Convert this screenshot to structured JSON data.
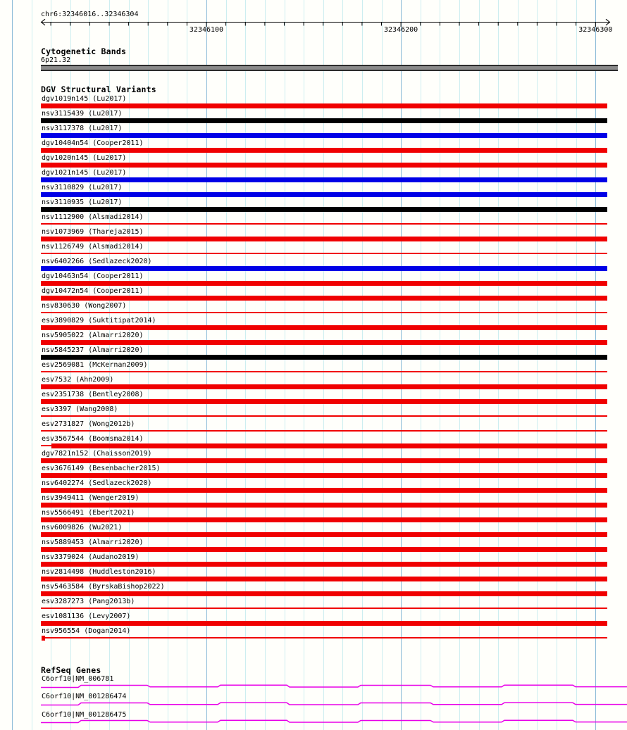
{
  "page": {
    "title": "chr6:32346016..32346304"
  },
  "ruler": {
    "start": 32346016,
    "end": 32346304,
    "tick_labels": [
      {
        "label": "32346100",
        "coord": 32346100
      },
      {
        "label": "32346200",
        "coord": 32346200
      },
      {
        "label": "32346300",
        "coord": 32346300
      }
    ]
  },
  "cytogenetic": {
    "title": "Cytogenetic Bands",
    "band_label": "6p21.32"
  },
  "dgv": {
    "title": "DGV Structural Variants",
    "variants": [
      {
        "label": "dgv1019n145 (Lu2017)",
        "color": "red",
        "style": "thick"
      },
      {
        "label": "nsv3115439 (Lu2017)",
        "color": "black",
        "style": "thick"
      },
      {
        "label": "nsv3117378 (Lu2017)",
        "color": "blue",
        "style": "thick"
      },
      {
        "label": "dgv10404n54 (Cooper2011)",
        "color": "red",
        "style": "thick"
      },
      {
        "label": "dgv1020n145 (Lu2017)",
        "color": "red",
        "style": "thick"
      },
      {
        "label": "dgv1021n145 (Lu2017)",
        "color": "blue",
        "style": "thick"
      },
      {
        "label": "nsv3110829 (Lu2017)",
        "color": "blue",
        "style": "thick"
      },
      {
        "label": "nsv3110935 (Lu2017)",
        "color": "black",
        "style": "thick"
      },
      {
        "label": "nsv1112900 (Alsmadi2014)",
        "color": "red",
        "style": "thin"
      },
      {
        "label": "nsv1073969 (Thareja2015)",
        "color": "red",
        "style": "thick"
      },
      {
        "label": "nsv1126749 (Alsmadi2014)",
        "color": "red",
        "style": "thin"
      },
      {
        "label": "nsv6402266 (Sedlazeck2020)",
        "color": "blue",
        "style": "thick"
      },
      {
        "label": "dgv10463n54 (Cooper2011)",
        "color": "red",
        "style": "thick"
      },
      {
        "label": "dgv10472n54 (Cooper2011)",
        "color": "red",
        "style": "thick"
      },
      {
        "label": "nsv830630 (Wong2007)",
        "color": "red",
        "style": "thin"
      },
      {
        "label": "esv3890829 (Suktitipat2014)",
        "color": "red",
        "style": "thick"
      },
      {
        "label": "nsv5905022 (Almarri2020)",
        "color": "red",
        "style": "thick"
      },
      {
        "label": "nsv5845237 (Almarri2020)",
        "color": "black",
        "style": "thick"
      },
      {
        "label": "esv2569081 (McKernan2009)",
        "color": "red",
        "style": "thin"
      },
      {
        "label": "esv7532 (Ahn2009)",
        "color": "red",
        "style": "thick"
      },
      {
        "label": "esv2351738 (Bentley2008)",
        "color": "red",
        "style": "thick"
      },
      {
        "label": "esv3397 (Wang2008)",
        "color": "red",
        "style": "thin"
      },
      {
        "label": "esv2731827 (Wong2012b)",
        "color": "red",
        "style": "thin"
      },
      {
        "label": "esv3567544 (Boomsma2014)",
        "color": "red",
        "style": "thin-then-thick"
      },
      {
        "label": "dgv7821n152 (Chaisson2019)",
        "color": "red",
        "style": "thick"
      },
      {
        "label": "esv3676149 (Besenbacher2015)",
        "color": "red",
        "style": "thick"
      },
      {
        "label": "nsv6402274 (Sedlazeck2020)",
        "color": "red",
        "style": "thick"
      },
      {
        "label": "nsv3949411 (Wenger2019)",
        "color": "red",
        "style": "thick"
      },
      {
        "label": "nsv5566491 (Ebert2021)",
        "color": "red",
        "style": "thick"
      },
      {
        "label": "nsv6009826 (Wu2021)",
        "color": "red",
        "style": "thick"
      },
      {
        "label": "nsv5889453 (Almarri2020)",
        "color": "red",
        "style": "thick"
      },
      {
        "label": "nsv3379024 (Audano2019)",
        "color": "red",
        "style": "thick"
      },
      {
        "label": "nsv2814498 (Huddleston2016)",
        "color": "red",
        "style": "thick"
      },
      {
        "label": "nsv5463584 (ByrskaBishop2022)",
        "color": "red",
        "style": "thick"
      },
      {
        "label": "esv3287273 (Pang2013b)",
        "color": "red",
        "style": "thin"
      },
      {
        "label": "esv1081136 (Levy2007)",
        "color": "red",
        "style": "thick"
      },
      {
        "label": "nsv956554 (Dogan2014)",
        "color": "red",
        "style": "block-then-thin"
      }
    ]
  },
  "refseq": {
    "title": "RefSeq Genes",
    "genes": [
      {
        "label": "C6orf10|NM_006781"
      },
      {
        "label": "C6orf10|NM_001286474"
      },
      {
        "label": "C6orf10|NM_001286475"
      }
    ]
  },
  "colors": {
    "red": "#f00000",
    "black": "#000000",
    "blue": "#0000e6",
    "magenta": "#e800e8",
    "grid_minor": "#cdeef0",
    "grid_major": "#8cbbd8",
    "band_gray": "#8a8a8a",
    "band_edge": "#2b2b2b",
    "axis": "#000000"
  }
}
